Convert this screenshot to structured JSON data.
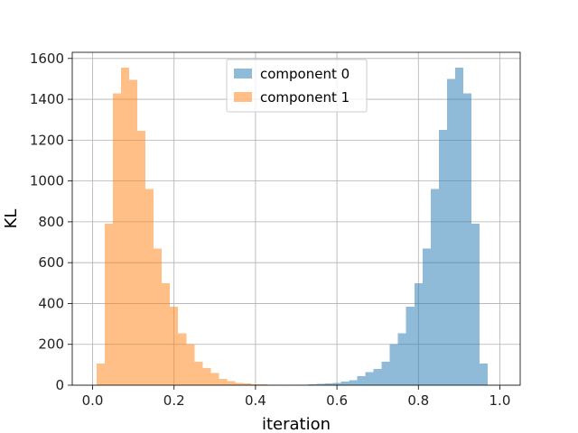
{
  "chart_data": {
    "type": "bar",
    "title": "",
    "xlabel": "iteration",
    "ylabel": "KL",
    "xlim": [
      -0.05,
      1.05
    ],
    "ylim": [
      0,
      1630
    ],
    "xticks": [
      0.0,
      0.2,
      0.4,
      0.6,
      0.8,
      1.0
    ],
    "xtick_labels": [
      "0.0",
      "0.2",
      "0.4",
      "0.6",
      "0.8",
      "1.0"
    ],
    "yticks": [
      0,
      200,
      400,
      600,
      800,
      1000,
      1200,
      1400,
      1600
    ],
    "ytick_labels": [
      "0",
      "200",
      "400",
      "600",
      "800",
      "1000",
      "1200",
      "1400",
      "1600"
    ],
    "grid": true,
    "legend_position": "top-center",
    "series": [
      {
        "name": "component 0",
        "color": "#1f77b4",
        "opacity": 0.5,
        "bin_edges": [
          0.49,
          0.51,
          0.53,
          0.55,
          0.57,
          0.59,
          0.61,
          0.63,
          0.65,
          0.67,
          0.69,
          0.71,
          0.73,
          0.75,
          0.77,
          0.79,
          0.81,
          0.83,
          0.85,
          0.87,
          0.89,
          0.91,
          0.93,
          0.95,
          0.97,
          0.99
        ],
        "counts": [
          2,
          3,
          4,
          6,
          9,
          12,
          18,
          25,
          45,
          65,
          80,
          115,
          200,
          255,
          385,
          500,
          670,
          960,
          1250,
          1500,
          1555,
          1430,
          790,
          105,
          0
        ]
      },
      {
        "name": "component 1",
        "color": "#ff7f0e",
        "opacity": 0.5,
        "bin_edges": [
          0.01,
          0.03,
          0.05,
          0.07,
          0.09,
          0.11,
          0.13,
          0.15,
          0.17,
          0.19,
          0.21,
          0.23,
          0.25,
          0.27,
          0.29,
          0.31,
          0.33,
          0.35,
          0.37,
          0.39,
          0.41,
          0.43,
          0.45,
          0.47,
          0.49
        ],
        "counts": [
          105,
          790,
          1430,
          1555,
          1495,
          1245,
          960,
          670,
          500,
          385,
          255,
          200,
          115,
          85,
          60,
          30,
          20,
          12,
          8,
          5,
          4,
          3,
          2,
          1
        ]
      }
    ]
  }
}
